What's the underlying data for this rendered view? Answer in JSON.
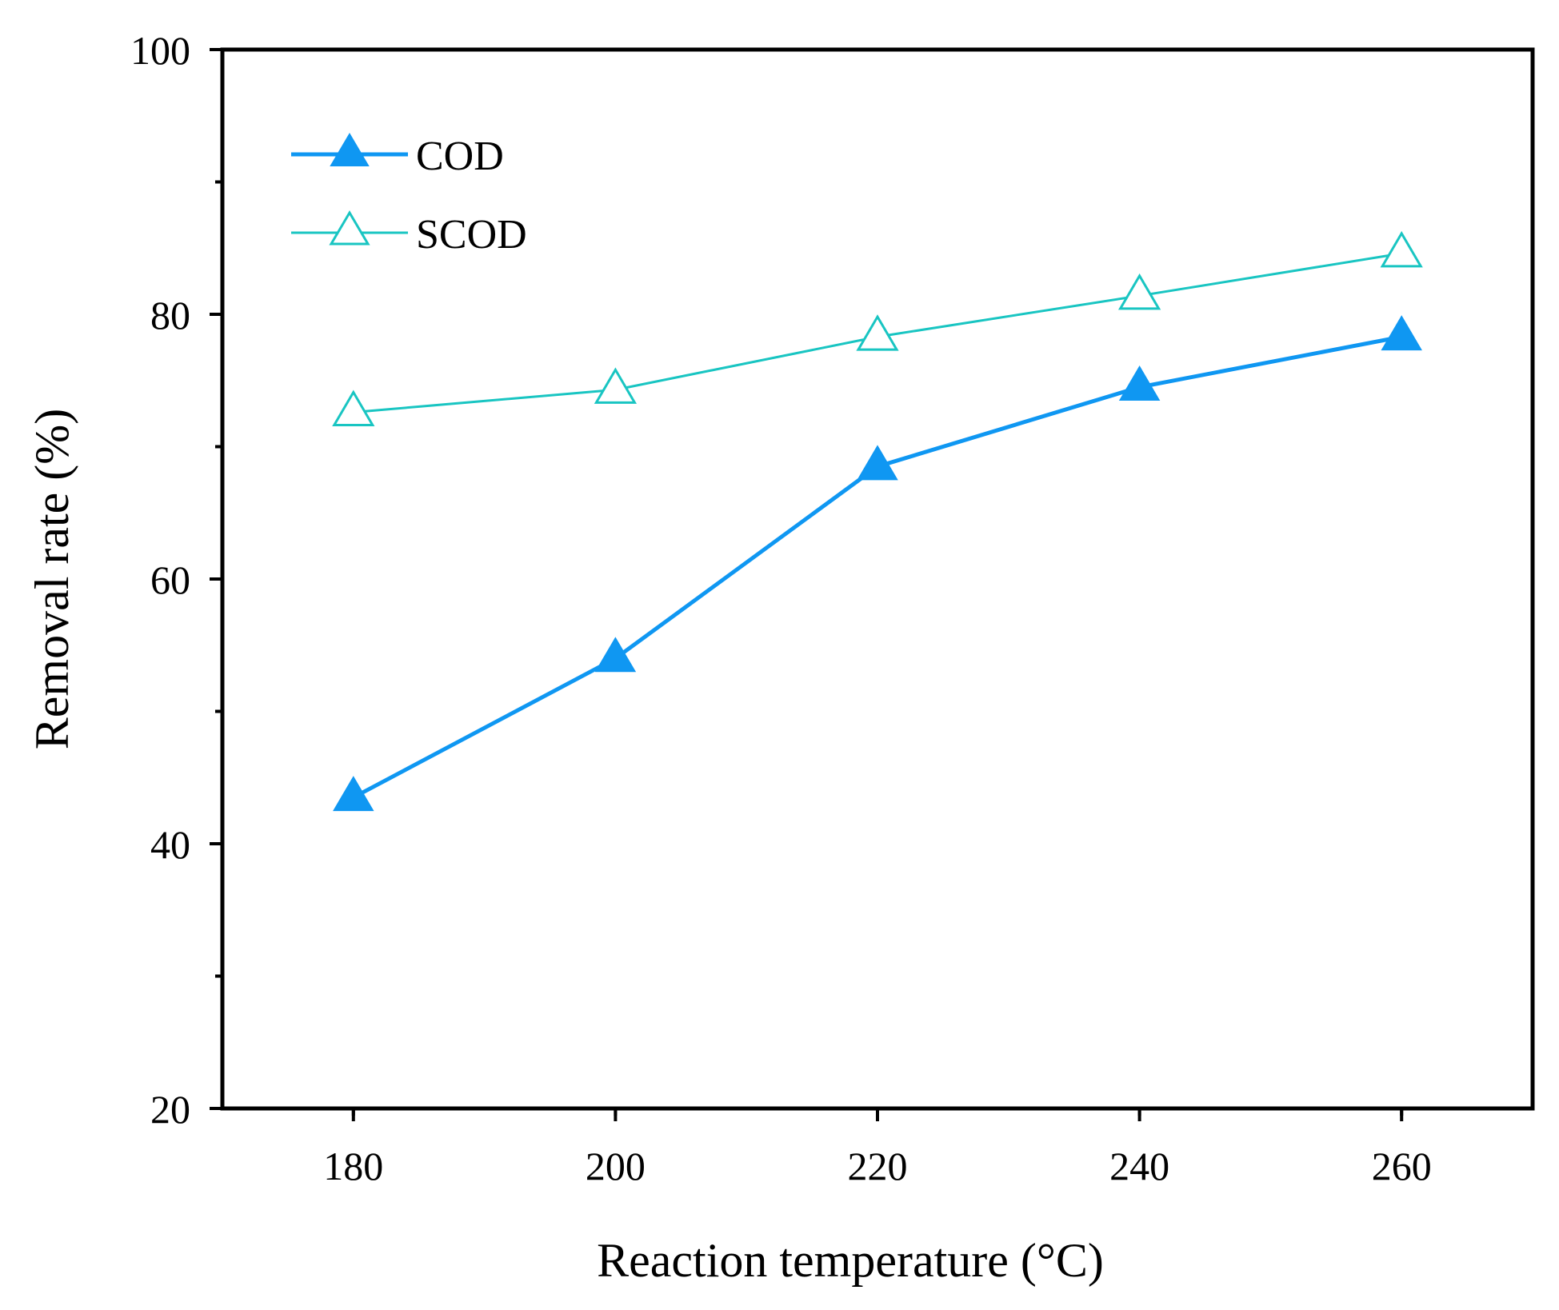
{
  "chart_data": {
    "type": "line",
    "title": "",
    "xlabel": "Reaction temperature (°C)",
    "ylabel": "Removal rate (%)",
    "x": [
      180,
      200,
      220,
      240,
      260
    ],
    "xlim": [
      170,
      270
    ],
    "ylim": [
      20,
      100
    ],
    "xticks": [
      180,
      200,
      220,
      240,
      260
    ],
    "yticks": [
      20,
      40,
      60,
      80,
      100
    ],
    "legend_position": "top-left",
    "grid": false,
    "series": [
      {
        "name": "COD",
        "values": [
          43.5,
          54,
          68.5,
          74.5,
          78.3
        ],
        "color": "#0f97f2",
        "marker": "filled-triangle"
      },
      {
        "name": "SCOD",
        "values": [
          72.6,
          74.3,
          78.3,
          81.4,
          84.6
        ],
        "color": "#19c5c2",
        "marker": "open-triangle"
      }
    ]
  }
}
